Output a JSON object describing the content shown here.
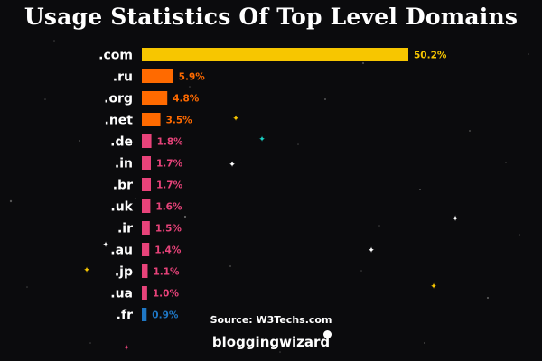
{
  "title": "Usage Statistics Of Top Level Domains",
  "source": "Source: W3Techs.com",
  "brand": "bloggingwizard",
  "colors": {
    "background": "#0b0b0d",
    "top": "#f7c600",
    "high": "#ff6a00",
    "mid": "#e8437a",
    "low": "#1f77c4"
  },
  "chart_data": {
    "type": "bar",
    "orientation": "horizontal",
    "categories": [
      ".com",
      ".ru",
      ".org",
      ".net",
      ".de",
      ".in",
      ".br",
      ".uk",
      ".ir",
      ".au",
      ".jp",
      ".ua",
      ".fr"
    ],
    "values": [
      50.2,
      5.9,
      4.8,
      3.5,
      1.8,
      1.7,
      1.7,
      1.6,
      1.5,
      1.4,
      1.1,
      1.0,
      0.9
    ],
    "value_labels": [
      "50.2%",
      "5.9%",
      "4.8%",
      "3.5%",
      "1.8%",
      "1.7%",
      "1.7%",
      "1.6%",
      "1.5%",
      "1.4%",
      "1.1%",
      "1.0%",
      "0.9%"
    ],
    "bar_colors": [
      "#f7c600",
      "#ff6a00",
      "#ff6a00",
      "#ff6a00",
      "#e8437a",
      "#e8437a",
      "#e8437a",
      "#e8437a",
      "#e8437a",
      "#e8437a",
      "#e8437a",
      "#e8437a",
      "#1f77c4"
    ],
    "title": "Usage Statistics Of Top Level Domains",
    "xlabel": "",
    "ylabel": "",
    "unit": "%",
    "grid": false
  }
}
